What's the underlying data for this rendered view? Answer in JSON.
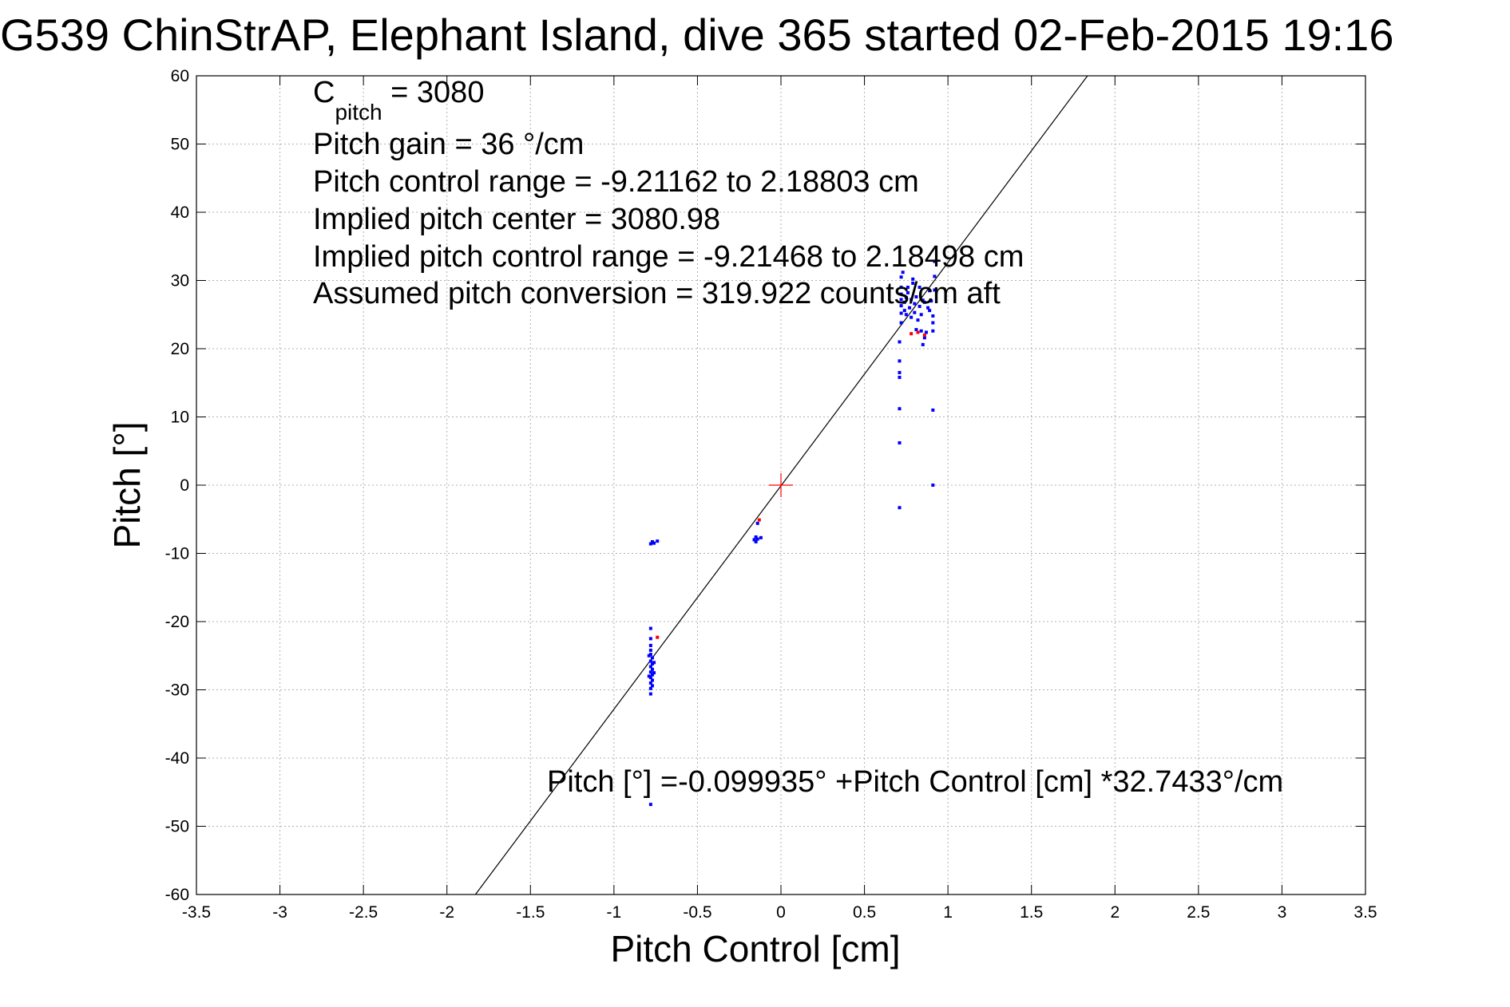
{
  "chart_data": {
    "type": "scatter",
    "title": "G539 ChinStrAP, Elephant Island, dive 365 started 02-Feb-2015 19:16",
    "xlabel": "Pitch Control [cm]",
    "ylabel": "Pitch [°]",
    "xlim": [
      -3.5,
      3.5
    ],
    "ylim": [
      -60,
      60
    ],
    "xticks": [
      -3.5,
      -3,
      -2.5,
      -2,
      -1.5,
      -1,
      -0.5,
      0,
      0.5,
      1,
      1.5,
      2,
      2.5,
      3,
      3.5
    ],
    "xtick_labels": [
      "-3.5",
      "-3",
      "-2.5",
      "-2",
      "-1.5",
      "-1",
      "-0.5",
      "0",
      "0.5",
      "1",
      "1.5",
      "2",
      "2.5",
      "3",
      "3.5"
    ],
    "yticks": [
      -60,
      -50,
      -40,
      -30,
      -20,
      -10,
      0,
      10,
      20,
      30,
      40,
      50,
      60
    ],
    "ytick_labels": [
      "-60",
      "-50",
      "-40",
      "-30",
      "-20",
      "-10",
      "0",
      "10",
      "20",
      "30",
      "40",
      "50",
      "60"
    ],
    "grid": true,
    "annotations": {
      "c_pitch_symbol": "C",
      "c_pitch_subscript": "pitch",
      "c_pitch_value": " = 3080",
      "pitch_gain": "Pitch gain = 36 °/cm",
      "pitch_control_range": "Pitch control range = -9.21162 to 2.18803 cm",
      "implied_pitch_center": "Implied pitch center = 3080.98",
      "implied_pitch_control_range": "Implied pitch control range = -9.21468 to 2.18498 cm",
      "assumed_pitch_conversion": "Assumed pitch conversion = 319.922 counts/cm aft",
      "fit_equation": "Pitch [°] =-0.099935° +Pitch Control [cm] *32.7433°/cm"
    },
    "fit_line": {
      "intercept": -0.099935,
      "slope": 32.7433,
      "color": "#000000"
    },
    "center_marker": {
      "x": 0,
      "y": 0,
      "color": "#ff0000"
    },
    "series": [
      {
        "color": "#0000ff",
        "points": [
          [
            -0.78,
            -8.6
          ],
          [
            -0.77,
            -8.3
          ],
          [
            -0.76,
            -8.5
          ],
          [
            -0.74,
            -8.2
          ],
          [
            -0.77,
            -8.4
          ],
          [
            -0.78,
            -21.0
          ],
          [
            -0.78,
            -22.5
          ],
          [
            -0.78,
            -23.5
          ],
          [
            -0.78,
            -24.2
          ],
          [
            -0.78,
            -24.8
          ],
          [
            -0.77,
            -25.3
          ],
          [
            -0.78,
            -25.8
          ],
          [
            -0.77,
            -26.2
          ],
          [
            -0.78,
            -26.6
          ],
          [
            -0.77,
            -27.0
          ],
          [
            -0.78,
            -27.4
          ],
          [
            -0.77,
            -27.8
          ],
          [
            -0.78,
            -28.2
          ],
          [
            -0.77,
            -28.6
          ],
          [
            -0.78,
            -29.0
          ],
          [
            -0.77,
            -29.4
          ],
          [
            -0.78,
            -29.8
          ],
          [
            -0.78,
            -30.6
          ],
          [
            -0.76,
            -26.0
          ],
          [
            -0.76,
            -27.5
          ],
          [
            -0.79,
            -25.0
          ],
          [
            -0.79,
            -28.0
          ],
          [
            -0.78,
            -46.8
          ],
          [
            -0.16,
            -8.0
          ],
          [
            -0.15,
            -8.3
          ],
          [
            -0.14,
            -7.9
          ],
          [
            -0.15,
            -7.6
          ],
          [
            -0.12,
            -7.7
          ],
          [
            -0.14,
            -5.6
          ],
          [
            0.71,
            -3.3
          ],
          [
            0.71,
            6.2
          ],
          [
            0.71,
            11.2
          ],
          [
            0.71,
            15.8
          ],
          [
            0.71,
            16.5
          ],
          [
            0.71,
            18.2
          ],
          [
            0.71,
            21.0
          ],
          [
            0.72,
            23.8
          ],
          [
            0.72,
            25.2
          ],
          [
            0.72,
            26.3
          ],
          [
            0.72,
            27.2
          ],
          [
            0.72,
            28.0
          ],
          [
            0.72,
            29.0
          ],
          [
            0.72,
            30.5
          ],
          [
            0.73,
            31.2
          ],
          [
            0.74,
            25.6
          ],
          [
            0.74,
            26.8
          ],
          [
            0.75,
            27.5
          ],
          [
            0.75,
            25.0
          ],
          [
            0.76,
            28.2
          ],
          [
            0.77,
            26.0
          ],
          [
            0.78,
            27.2
          ],
          [
            0.78,
            24.6
          ],
          [
            0.79,
            29.6
          ],
          [
            0.79,
            30.2
          ],
          [
            0.8,
            26.6
          ],
          [
            0.8,
            25.3
          ],
          [
            0.81,
            27.6
          ],
          [
            0.82,
            24.2
          ],
          [
            0.83,
            26.2
          ],
          [
            0.84,
            25.0
          ],
          [
            0.84,
            22.6
          ],
          [
            0.85,
            27.1
          ],
          [
            0.85,
            20.6
          ],
          [
            0.86,
            21.6
          ],
          [
            0.87,
            22.4
          ],
          [
            0.88,
            26.0
          ],
          [
            0.89,
            28.5
          ],
          [
            0.89,
            25.6
          ],
          [
            0.9,
            27.0
          ],
          [
            0.91,
            23.8
          ],
          [
            0.91,
            22.6
          ],
          [
            0.91,
            24.8
          ],
          [
            0.92,
            28.6
          ],
          [
            0.92,
            30.6
          ],
          [
            0.92,
            32.8
          ],
          [
            0.91,
            11.0
          ],
          [
            0.91,
            0.0
          ],
          [
            0.83,
            29.0
          ],
          [
            0.86,
            26.8
          ],
          [
            0.76,
            29.0
          ],
          [
            0.81,
            22.8
          ]
        ]
      },
      {
        "color": "#ff0000",
        "points": [
          [
            -0.74,
            -22.3
          ],
          [
            -0.13,
            -5.1
          ],
          [
            0.78,
            22.2
          ],
          [
            0.82,
            22.4
          ],
          [
            0.86,
            22.0
          ]
        ]
      }
    ]
  }
}
